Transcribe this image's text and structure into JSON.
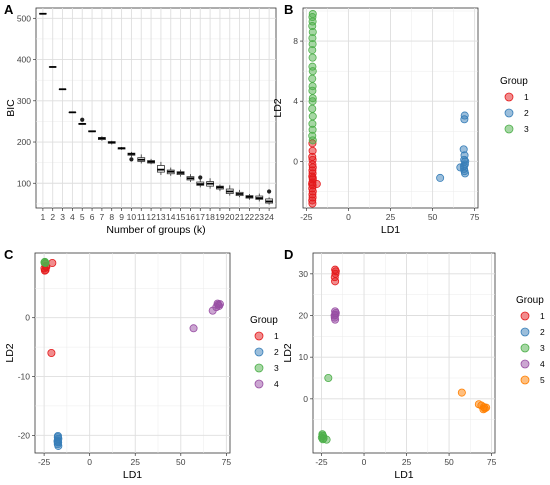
{
  "colors": {
    "group1": "#e41a1c",
    "group2": "#377eb8",
    "group3": "#4daf4a",
    "group4": "#984ea3",
    "group5": "#ff7f00",
    "panel_bg": "#ffffff",
    "grid": "#ebebeb",
    "box": "#333333"
  },
  "chart_data": [
    {
      "panel": "A",
      "type": "box",
      "xlabel": "Number of groups (k)",
      "ylabel": "BIC",
      "xlim": [
        0.3,
        24.7
      ],
      "ylim": [
        40,
        525
      ],
      "x_ticks": [
        1,
        2,
        3,
        4,
        5,
        6,
        7,
        8,
        9,
        10,
        11,
        12,
        13,
        14,
        15,
        16,
        17,
        18,
        19,
        20,
        21,
        22,
        23,
        24
      ],
      "y_ticks": [
        100,
        200,
        300,
        400,
        500
      ],
      "grid": true,
      "boxes": [
        {
          "k": 1,
          "min": 511,
          "q1": 511,
          "median": 511,
          "q3": 511,
          "max": 511,
          "outliers": []
        },
        {
          "k": 2,
          "min": 382,
          "q1": 382,
          "median": 382,
          "q3": 382,
          "max": 382,
          "outliers": []
        },
        {
          "k": 3,
          "min": 328,
          "q1": 328,
          "median": 328,
          "q3": 328,
          "max": 328,
          "outliers": []
        },
        {
          "k": 4,
          "min": 272,
          "q1": 272,
          "median": 272,
          "q3": 272,
          "max": 272,
          "outliers": []
        },
        {
          "k": 5,
          "min": 243,
          "q1": 243,
          "median": 244,
          "q3": 245,
          "max": 246,
          "outliers": [
            254
          ]
        },
        {
          "k": 6,
          "min": 224,
          "q1": 225,
          "median": 226,
          "q3": 227,
          "max": 228,
          "outliers": []
        },
        {
          "k": 7,
          "min": 203,
          "q1": 206,
          "median": 209,
          "q3": 211,
          "max": 214,
          "outliers": []
        },
        {
          "k": 8,
          "min": 194,
          "q1": 197,
          "median": 199,
          "q3": 201,
          "max": 203,
          "outliers": []
        },
        {
          "k": 9,
          "min": 181,
          "q1": 183,
          "median": 185,
          "q3": 186,
          "max": 188,
          "outliers": []
        },
        {
          "k": 10,
          "min": 163,
          "q1": 168,
          "median": 171,
          "q3": 173,
          "max": 176,
          "outliers": [
            158
          ]
        },
        {
          "k": 11,
          "min": 148,
          "q1": 153,
          "median": 157,
          "q3": 162,
          "max": 170,
          "outliers": []
        },
        {
          "k": 12,
          "min": 146,
          "q1": 149,
          "median": 152,
          "q3": 155,
          "max": 159,
          "outliers": []
        },
        {
          "k": 13,
          "min": 120,
          "q1": 127,
          "median": 133,
          "q3": 143,
          "max": 152,
          "outliers": []
        },
        {
          "k": 14,
          "min": 118,
          "q1": 123,
          "median": 128,
          "q3": 132,
          "max": 138,
          "outliers": []
        },
        {
          "k": 15,
          "min": 116,
          "q1": 121,
          "median": 125,
          "q3": 128,
          "max": 133,
          "outliers": []
        },
        {
          "k": 16,
          "min": 103,
          "q1": 108,
          "median": 112,
          "q3": 116,
          "max": 122,
          "outliers": []
        },
        {
          "k": 17,
          "min": 90,
          "q1": 95,
          "median": 98,
          "q3": 103,
          "max": 110,
          "outliers": [
            114
          ]
        },
        {
          "k": 18,
          "min": 87,
          "q1": 93,
          "median": 99,
          "q3": 104,
          "max": 112,
          "outliers": []
        },
        {
          "k": 19,
          "min": 81,
          "q1": 86,
          "median": 90,
          "q3": 93,
          "max": 97,
          "outliers": []
        },
        {
          "k": 20,
          "min": 70,
          "q1": 75,
          "median": 80,
          "q3": 86,
          "max": 95,
          "outliers": []
        },
        {
          "k": 21,
          "min": 66,
          "q1": 70,
          "median": 74,
          "q3": 78,
          "max": 84,
          "outliers": []
        },
        {
          "k": 22,
          "min": 60,
          "q1": 64,
          "median": 67,
          "q3": 70,
          "max": 74,
          "outliers": []
        },
        {
          "k": 23,
          "min": 56,
          "q1": 61,
          "median": 64,
          "q3": 69,
          "max": 75,
          "outliers": []
        },
        {
          "k": 24,
          "min": 48,
          "q1": 52,
          "median": 56,
          "q3": 62,
          "max": 66,
          "outliers": [
            80
          ]
        }
      ]
    },
    {
      "panel": "B",
      "type": "scatter",
      "xlabel": "LD1",
      "ylabel": "LD2",
      "xlim": [
        -27,
        77
      ],
      "ylim": [
        -3.1,
        10.2
      ],
      "x_ticks": [
        -25,
        0,
        25,
        50,
        75
      ],
      "y_ticks": [
        0,
        4,
        8
      ],
      "grid": true,
      "legend": {
        "title": "Group",
        "entries": [
          "1",
          "2",
          "3"
        ]
      },
      "series": [
        {
          "group": "1",
          "points": [
            [
              -21.5,
              0.3
            ],
            [
              -21.3,
              0.1
            ],
            [
              -21.4,
              -0.2
            ],
            [
              -21.2,
              -0.4
            ],
            [
              -21.4,
              -0.6
            ],
            [
              -21.3,
              -0.8
            ],
            [
              -21.5,
              -1.0
            ],
            [
              -21.2,
              -1.2
            ],
            [
              -21.4,
              -1.4
            ],
            [
              -21.3,
              -1.6
            ],
            [
              -21.5,
              -1.8
            ],
            [
              -21.2,
              -2.0
            ],
            [
              -21.4,
              -2.2
            ],
            [
              -21.3,
              -2.4
            ],
            [
              -21.5,
              -2.6
            ],
            [
              -21.4,
              -2.8
            ],
            [
              -21.2,
              -1.1
            ],
            [
              -21.6,
              -1.5
            ],
            [
              -18.8,
              -1.5
            ],
            [
              -21.3,
              0.7
            ],
            [
              -21.4,
              1.2
            ]
          ]
        },
        {
          "group": "2",
          "points": [
            [
              54.5,
              -1.1
            ],
            [
              66.5,
              -0.4
            ],
            [
              68.5,
              0.8
            ],
            [
              69.0,
              0.4
            ],
            [
              68.8,
              0.1
            ],
            [
              69.2,
              -0.2
            ],
            [
              68.7,
              -0.5
            ],
            [
              69.3,
              -0.8
            ],
            [
              68.9,
              2.8
            ],
            [
              69.1,
              3.05
            ],
            [
              69.4,
              0.0
            ],
            [
              68.6,
              -0.3
            ],
            [
              69.0,
              -0.65
            ]
          ]
        },
        {
          "group": "3",
          "points": [
            [
              -21.2,
              9.8
            ],
            [
              -21.4,
              9.6
            ],
            [
              -21.3,
              9.3
            ],
            [
              -21.5,
              9.0
            ],
            [
              -21.2,
              8.6
            ],
            [
              -21.4,
              8.2
            ],
            [
              -21.3,
              7.8
            ],
            [
              -21.5,
              7.4
            ],
            [
              -21.3,
              6.9
            ],
            [
              -21.4,
              6.3
            ],
            [
              -21.2,
              6.0
            ],
            [
              -21.5,
              5.5
            ],
            [
              -21.3,
              5.0
            ],
            [
              -21.4,
              4.7
            ],
            [
              -21.2,
              4.2
            ],
            [
              -21.3,
              4.0
            ],
            [
              -21.5,
              3.5
            ],
            [
              -21.2,
              3.0
            ],
            [
              -21.4,
              2.5
            ],
            [
              -21.3,
              2.1
            ],
            [
              -21.5,
              1.7
            ],
            [
              -21.2,
              1.4
            ]
          ]
        }
      ]
    },
    {
      "panel": "C",
      "type": "scatter",
      "xlabel": "LD1",
      "ylabel": "LD2",
      "xlim": [
        -30,
        77
      ],
      "ylim": [
        -23,
        11
      ],
      "x_ticks": [
        -25,
        0,
        25,
        50,
        75
      ],
      "y_ticks": [
        -20,
        -10,
        0
      ],
      "grid": true,
      "legend": {
        "title": "Group",
        "entries": [
          "1",
          "2",
          "3",
          "4"
        ]
      },
      "series": [
        {
          "group": "1",
          "points": [
            [
              -24.5,
              9.2
            ],
            [
              -24.0,
              8.8
            ],
            [
              -24.8,
              8.4
            ],
            [
              -24.2,
              8.1
            ],
            [
              -23.8,
              8.6
            ],
            [
              -24.6,
              8.0
            ],
            [
              -20.5,
              9.3
            ],
            [
              -21.0,
              -6.0
            ]
          ]
        },
        {
          "group": "2",
          "points": [
            [
              -17.5,
              -20.3
            ],
            [
              -17.2,
              -20.6
            ],
            [
              -17.6,
              -20.9
            ],
            [
              -17.3,
              -21.2
            ],
            [
              -17.5,
              -21.5
            ],
            [
              -17.2,
              -21.8
            ],
            [
              -17.4,
              -20.1
            ],
            [
              -17.6,
              -21.1
            ]
          ]
        },
        {
          "group": "3",
          "points": [
            [
              -24.8,
              9.4
            ],
            [
              -24.2,
              9.3
            ],
            [
              -24.6,
              9.5
            ]
          ]
        },
        {
          "group": "4",
          "points": [
            [
              57.0,
              -1.8
            ],
            [
              67.5,
              1.2
            ],
            [
              69.5,
              1.8
            ],
            [
              70.5,
              2.2
            ],
            [
              71.0,
              2.0
            ],
            [
              70.2,
              2.4
            ],
            [
              71.5,
              2.3
            ]
          ]
        }
      ]
    },
    {
      "panel": "D",
      "type": "scatter",
      "xlabel": "LD1",
      "ylabel": "LD2",
      "xlim": [
        -30,
        77
      ],
      "ylim": [
        -13,
        35
      ],
      "x_ticks": [
        -25,
        0,
        25,
        50,
        75
      ],
      "y_ticks": [
        0,
        10,
        20,
        30
      ],
      "grid": true,
      "legend": {
        "title": "Group",
        "entries": [
          "1",
          "2",
          "3",
          "4",
          "5"
        ]
      },
      "series": [
        {
          "group": "1",
          "points": [
            [
              -17.0,
              31.0
            ],
            [
              -16.8,
              30.0
            ],
            [
              -17.2,
              29.2
            ],
            [
              -17.0,
              28.2
            ],
            [
              -16.6,
              30.6
            ]
          ]
        },
        {
          "group": "2",
          "points": []
        },
        {
          "group": "3",
          "points": [
            [
              -21.0,
              5.0
            ],
            [
              -24.5,
              -8.5
            ],
            [
              -24.0,
              -9.0
            ],
            [
              -24.8,
              -9.3
            ],
            [
              -24.2,
              -9.7
            ],
            [
              -23.8,
              -9.5
            ],
            [
              -24.4,
              -8.8
            ],
            [
              -22.0,
              -9.8
            ]
          ]
        },
        {
          "group": "4",
          "points": [
            [
              -17.0,
              21.0
            ],
            [
              -16.8,
              20.2
            ],
            [
              -17.2,
              19.5
            ],
            [
              -17.0,
              19.0
            ],
            [
              -16.6,
              20.6
            ],
            [
              -17.3,
              20.0
            ]
          ]
        },
        {
          "group": "5",
          "points": [
            [
              57.5,
              1.5
            ],
            [
              67.5,
              -1.3
            ],
            [
              69.0,
              -1.6
            ],
            [
              70.5,
              -2.0
            ],
            [
              71.0,
              -2.3
            ],
            [
              71.8,
              -2.1
            ],
            [
              70.2,
              -2.5
            ]
          ]
        }
      ]
    }
  ]
}
